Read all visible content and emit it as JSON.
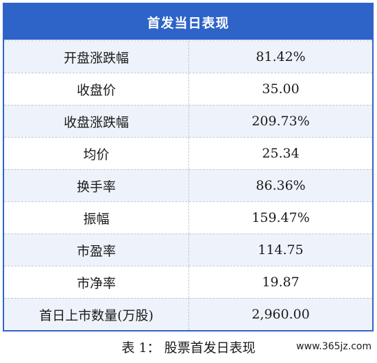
{
  "table": {
    "header": "首发当日表现",
    "rows": [
      {
        "label": "开盘涨跌幅",
        "value": "81.42%"
      },
      {
        "label": "收盘价",
        "value": "35.00"
      },
      {
        "label": "收盘涨跌幅",
        "value": "209.73%"
      },
      {
        "label": "均价",
        "value": "25.34"
      },
      {
        "label": "换手率",
        "value": "86.36%"
      },
      {
        "label": "振幅",
        "value": "159.47%"
      },
      {
        "label": "市盈率",
        "value": "114.75"
      },
      {
        "label": "市净率",
        "value": "19.87"
      },
      {
        "label": "首日上市数量(万股)",
        "value": "2,960.00"
      }
    ]
  },
  "caption": "表 1： 股票首发日表现",
  "watermark": "www.365jz.com",
  "colors": {
    "header_bg": "#2e63c8",
    "alt_row_bg": "#eef3fb",
    "border": "#2e63c8"
  }
}
